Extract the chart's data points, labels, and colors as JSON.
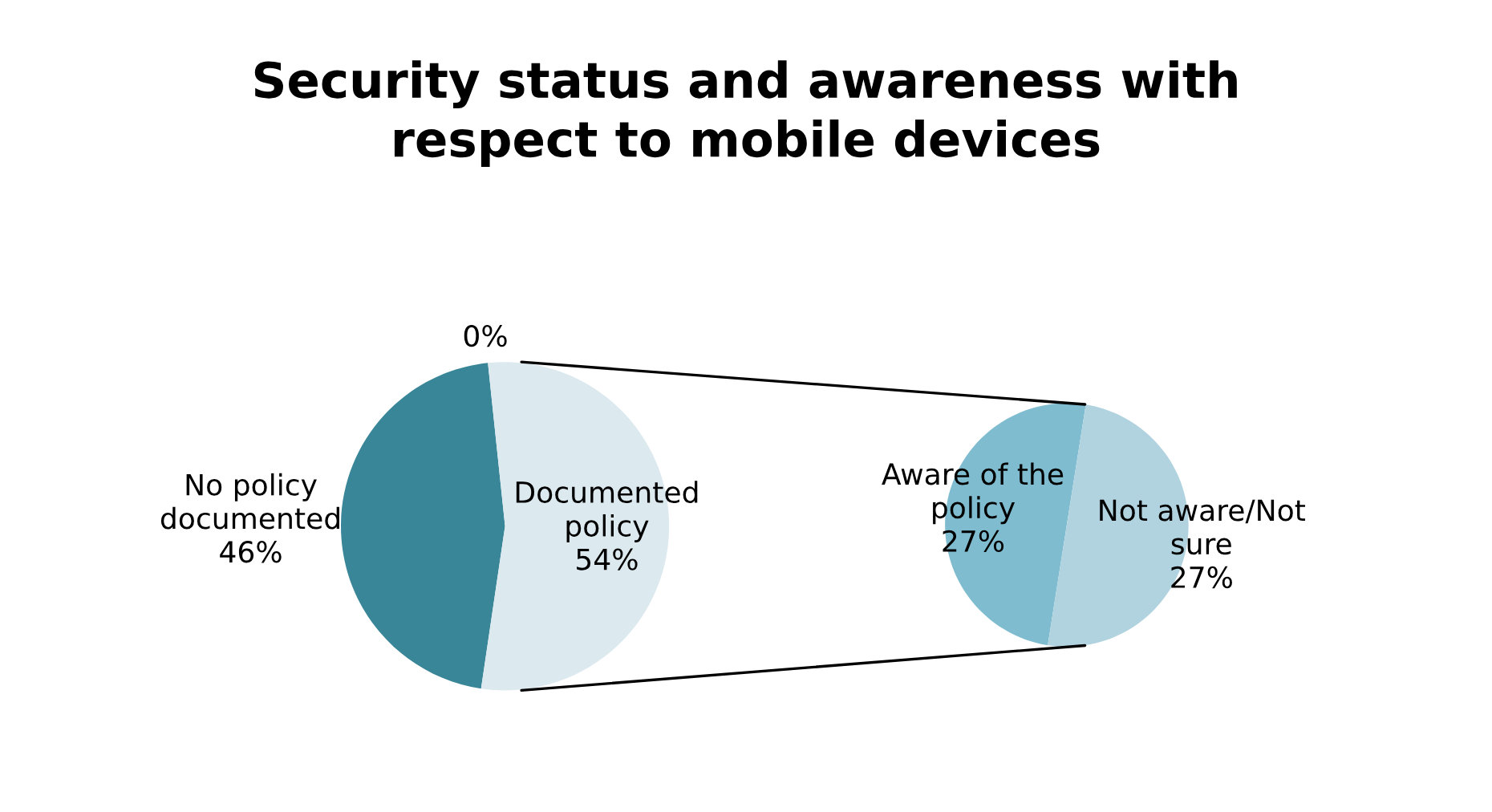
{
  "chart_data": [
    {
      "type": "pie",
      "title": "Security status and awareness with\nrespect to mobile devices",
      "categories": [
        "No policy\ndocumented",
        "Documented\npolicy",
        null
      ],
      "values": [
        46,
        54,
        0
      ],
      "value_labels": [
        "46%",
        "54%",
        "0%"
      ],
      "colors": [
        "#3a8699",
        "#dce9ef",
        "#dce9ef"
      ]
    },
    {
      "type": "pie",
      "categories": [
        "Aware of the\npolicy",
        "Not aware/Not\nsure"
      ],
      "values": [
        27,
        27
      ],
      "value_labels": [
        "27%",
        "27%"
      ],
      "colors": [
        "#7fbcd0",
        "#b0d3df"
      ]
    }
  ]
}
